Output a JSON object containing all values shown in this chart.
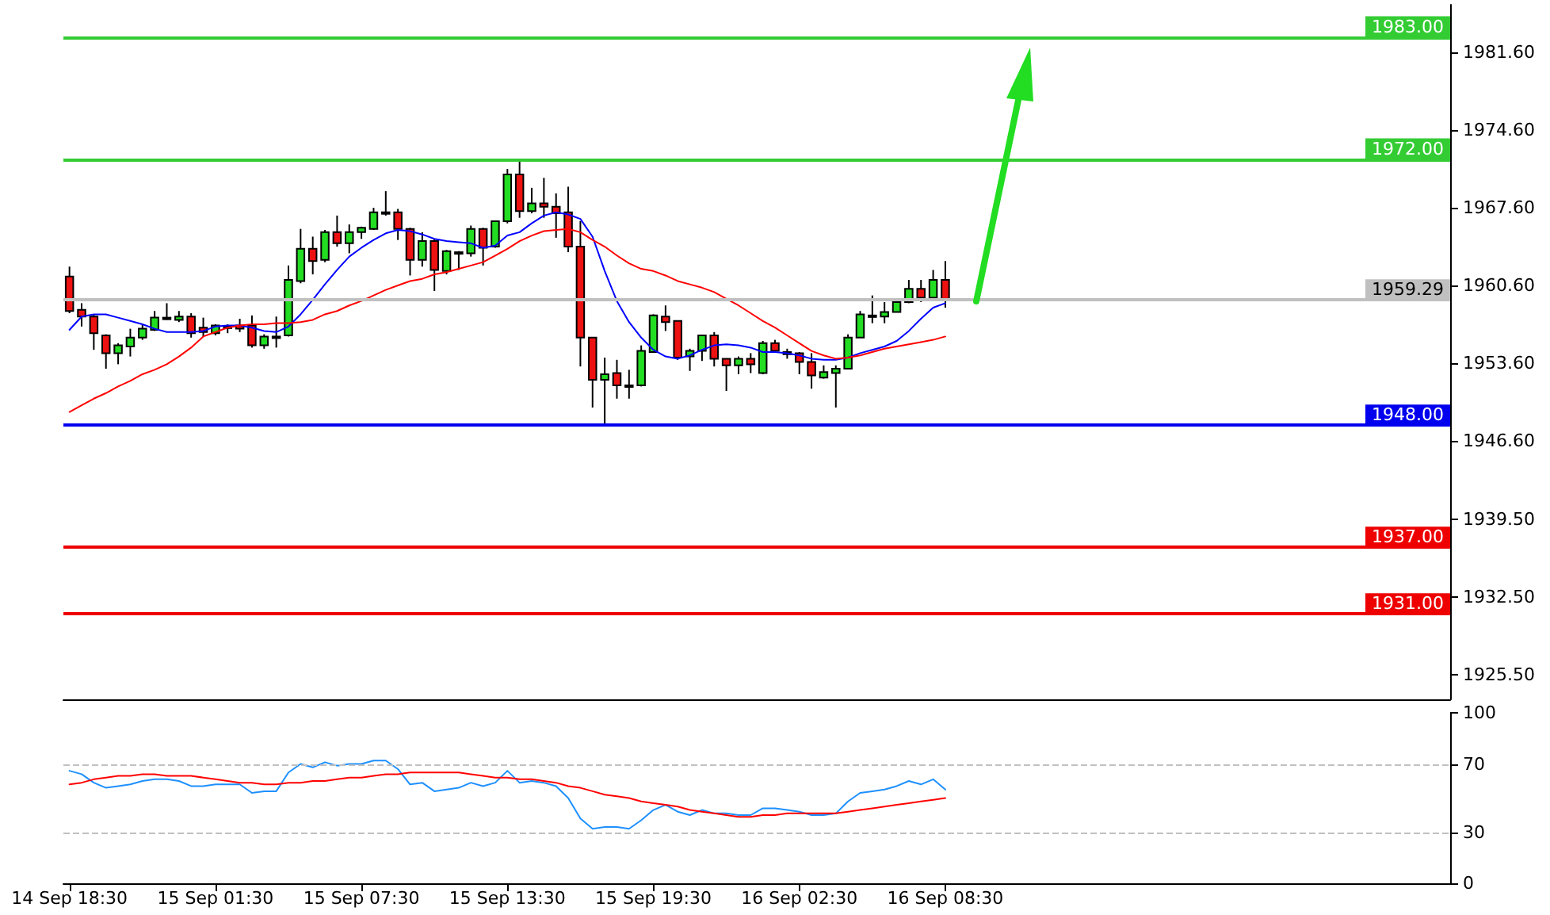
{
  "chart_data": [
    {
      "type": "candlestick",
      "categories": [
        null,
        null,
        null,
        null,
        null,
        null,
        null,
        null,
        null,
        null,
        null,
        null,
        null,
        null,
        null,
        null,
        null,
        null,
        null,
        null,
        null,
        null,
        null,
        null,
        null,
        null,
        null,
        null,
        null,
        null,
        null,
        null,
        null,
        null,
        null,
        null,
        null,
        null,
        null,
        null,
        null,
        null,
        null,
        null,
        null,
        null,
        null,
        null,
        null,
        null,
        null,
        null,
        null,
        null,
        null,
        null,
        null,
        null,
        null,
        null,
        null,
        null,
        null,
        null,
        null,
        null,
        null,
        null,
        null,
        null,
        null,
        null,
        null
      ],
      "ohlc": [
        [
          1961.4,
          1962.3,
          1958.1,
          1958.3
        ],
        [
          1958.4,
          1959.0,
          1956.9,
          1957.8
        ],
        [
          1957.8,
          1958.0,
          1954.8,
          1956.3
        ],
        [
          1956.1,
          1956.2,
          1953.1,
          1954.5
        ],
        [
          1954.5,
          1955.4,
          1953.5,
          1955.2
        ],
        [
          1955.1,
          1956.7,
          1954.2,
          1955.9
        ],
        [
          1955.9,
          1957.1,
          1955.7,
          1956.7
        ],
        [
          1956.6,
          1958.3,
          1956.5,
          1957.7
        ],
        [
          1957.7,
          1959.0,
          1957.5,
          1957.7
        ],
        [
          1957.5,
          1958.3,
          1957.3,
          1957.8
        ],
        [
          1957.8,
          1958.1,
          1955.9,
          1956.3
        ],
        [
          1956.8,
          1957.7,
          1956.0,
          1956.4
        ],
        [
          1956.3,
          1957.1,
          1956.1,
          1957.0
        ],
        [
          1956.9,
          1957.1,
          1956.3,
          1956.9
        ],
        [
          1957.0,
          1957.6,
          1956.4,
          1956.7
        ],
        [
          1957.0,
          1957.9,
          1955.0,
          1955.2
        ],
        [
          1955.2,
          1956.2,
          1954.9,
          1956.0
        ],
        [
          1956.0,
          1957.8,
          1955.0,
          1956.0
        ],
        [
          1956.1,
          1962.4,
          1956.0,
          1961.1
        ],
        [
          1961.0,
          1965.7,
          1960.8,
          1963.9
        ],
        [
          1963.9,
          1965.0,
          1961.6,
          1962.8
        ],
        [
          1962.9,
          1965.6,
          1962.7,
          1965.4
        ],
        [
          1965.4,
          1966.9,
          1964.1,
          1964.4
        ],
        [
          1964.4,
          1966.1,
          1963.5,
          1965.4
        ],
        [
          1965.4,
          1965.9,
          1964.8,
          1965.8
        ],
        [
          1965.7,
          1967.6,
          1965.6,
          1967.2
        ],
        [
          1967.2,
          1969.1,
          1966.9,
          1967.2
        ],
        [
          1967.2,
          1967.5,
          1964.7,
          1965.7
        ],
        [
          1965.7,
          1965.8,
          1961.5,
          1962.9
        ],
        [
          1962.9,
          1965.4,
          1962.3,
          1964.6
        ],
        [
          1964.6,
          1964.8,
          1960.1,
          1962.0
        ],
        [
          1961.9,
          1963.8,
          1961.6,
          1963.7
        ],
        [
          1963.6,
          1963.7,
          1962.0,
          1963.6
        ],
        [
          1963.5,
          1966.0,
          1963.2,
          1965.7
        ],
        [
          1965.7,
          1965.8,
          1962.4,
          1964.0
        ],
        [
          1964.1,
          1966.4,
          1964.0,
          1966.4
        ],
        [
          1966.4,
          1971.1,
          1966.2,
          1970.6
        ],
        [
          1970.6,
          1971.8,
          1966.7,
          1967.3
        ],
        [
          1967.3,
          1969.4,
          1967.1,
          1968.0
        ],
        [
          1968.0,
          1970.3,
          1966.7,
          1967.7
        ],
        [
          1967.7,
          1968.9,
          1964.9,
          1967.1
        ],
        [
          1967.2,
          1969.5,
          1963.6,
          1964.1
        ],
        [
          1964.1,
          1966.4,
          1953.3,
          1955.9
        ],
        [
          1955.9,
          1955.9,
          1949.6,
          1952.1
        ],
        [
          1952.1,
          1954.1,
          1948.0,
          1952.6
        ],
        [
          1952.7,
          1953.9,
          1950.4,
          1951.6
        ],
        [
          1951.6,
          1953.0,
          1950.4,
          1951.6
        ],
        [
          1951.6,
          1955.2,
          1951.5,
          1954.7
        ],
        [
          1954.6,
          1958.0,
          1954.6,
          1957.9
        ],
        [
          1957.8,
          1958.8,
          1956.5,
          1957.3
        ],
        [
          1957.4,
          1957.4,
          1953.9,
          1954.1
        ],
        [
          1954.2,
          1954.9,
          1952.9,
          1954.7
        ],
        [
          1954.7,
          1956.1,
          1953.8,
          1956.1
        ],
        [
          1956.1,
          1956.4,
          1953.3,
          1954.0
        ],
        [
          1954.0,
          1954.0,
          1951.1,
          1953.4
        ],
        [
          1953.4,
          1954.2,
          1952.6,
          1954.0
        ],
        [
          1954.0,
          1954.5,
          1952.7,
          1953.5
        ],
        [
          1952.7,
          1955.6,
          1952.6,
          1955.4
        ],
        [
          1955.4,
          1955.7,
          1954.6,
          1954.7
        ],
        [
          1954.6,
          1954.9,
          1954.0,
          1954.4
        ],
        [
          1954.5,
          1954.6,
          1952.6,
          1953.7
        ],
        [
          1953.7,
          1954.5,
          1951.3,
          1952.5
        ],
        [
          1952.3,
          1953.4,
          1952.2,
          1952.8
        ],
        [
          1952.7,
          1953.4,
          1949.6,
          1953.1
        ],
        [
          1953.1,
          1956.2,
          1953.1,
          1955.9
        ],
        [
          1955.9,
          1958.3,
          1955.9,
          1958.0
        ],
        [
          1957.9,
          1959.7,
          1957.2,
          1957.9
        ],
        [
          1957.8,
          1959.1,
          1957.2,
          1958.2
        ],
        [
          1958.2,
          1959.3,
          1958.2,
          1959.1
        ],
        [
          1959.1,
          1961.1,
          1959.0,
          1960.3
        ],
        [
          1960.3,
          1961.1,
          1959.1,
          1959.5
        ],
        [
          1959.5,
          1962.0,
          1959.4,
          1961.1
        ],
        [
          1961.1,
          1962.8,
          1958.6,
          1959.29
        ]
      ],
      "colors": [
        "#ee1111",
        "#ee1111",
        "#ee1111",
        "#ee1111",
        "#22dd22",
        "#22dd22",
        "#22dd22",
        "#22dd22",
        "#22dd22",
        "#22dd22",
        "#ee1111",
        "#ee1111",
        "#22dd22",
        "#22dd22",
        "#ee1111",
        "#ee1111",
        "#22dd22",
        "#22dd22",
        "#22dd22",
        "#22dd22",
        "#ee1111",
        "#22dd22",
        "#ee1111",
        "#22dd22",
        "#22dd22",
        "#22dd22",
        "#22dd22",
        "#ee1111",
        "#ee1111",
        "#22dd22",
        "#ee1111",
        "#22dd22",
        "#22dd22",
        "#22dd22",
        "#ee1111",
        "#22dd22",
        "#22dd22",
        "#ee1111",
        "#22dd22",
        "#ee1111",
        "#ee1111",
        "#ee1111",
        "#ee1111",
        "#ee1111",
        "#22dd22",
        "#ee1111",
        "#22dd22",
        "#22dd22",
        "#22dd22",
        "#ee1111",
        "#ee1111",
        "#22dd22",
        "#22dd22",
        "#ee1111",
        "#ee1111",
        "#22dd22",
        "#ee1111",
        "#22dd22",
        "#ee1111",
        "#ee1111",
        "#ee1111",
        "#ee1111",
        "#22dd22",
        "#22dd22",
        "#22dd22",
        "#22dd22",
        "#22dd22",
        "#22dd22",
        "#22dd22",
        "#22dd22",
        "#ee1111",
        "#22dd22",
        "#ee1111"
      ],
      "series": [
        {
          "type": "line",
          "color": "#0000ff",
          "values": [
            1956.6,
            1957.8,
            1958.0,
            1958.0,
            1957.7,
            1957.4,
            1957.1,
            1956.7,
            1956.4,
            1956.4,
            1956.4,
            1956.5,
            1956.9,
            1957.0,
            1957.0,
            1956.8,
            1956.5,
            1956.4,
            1956.9,
            1958.0,
            1959.3,
            1960.7,
            1962.0,
            1963.2,
            1964.0,
            1964.7,
            1965.3,
            1965.6,
            1965.5,
            1965.2,
            1964.8,
            1964.6,
            1964.5,
            1964.4,
            1964.0,
            1964.2,
            1965.1,
            1965.4,
            1966.2,
            1966.9,
            1967.2,
            1967.0,
            1966.6,
            1965.0,
            1961.9,
            1959.2,
            1957.3,
            1955.9,
            1954.8,
            1954.2,
            1954.0,
            1954.3,
            1954.8,
            1955.2,
            1955.3,
            1955.2,
            1955.0,
            1954.6,
            1954.6,
            1954.5,
            1954.3,
            1954.0,
            1953.9,
            1953.9,
            1954.1,
            1954.5,
            1954.8,
            1955.1,
            1955.6,
            1956.5,
            1957.6,
            1958.6,
            1959.0
          ]
        },
        {
          "type": "line",
          "color": "#ff0000",
          "values": [
            1949.2,
            1949.8,
            1950.4,
            1950.9,
            1951.5,
            1952.0,
            1952.6,
            1953.0,
            1953.5,
            1954.2,
            1955.0,
            1956.0,
            1956.4,
            1956.8,
            1957.0,
            1957.1,
            1957.1,
            1957.2,
            1957.2,
            1957.3,
            1957.5,
            1958.0,
            1958.3,
            1958.8,
            1959.2,
            1959.7,
            1960.2,
            1960.6,
            1961.0,
            1961.2,
            1961.6,
            1961.8,
            1962.1,
            1962.4,
            1962.7,
            1963.3,
            1963.9,
            1964.6,
            1965.1,
            1965.5,
            1965.6,
            1965.7,
            1965.4,
            1964.7,
            1964.1,
            1963.3,
            1962.6,
            1962.1,
            1961.9,
            1961.5,
            1961.0,
            1960.7,
            1960.4,
            1960.0,
            1959.4,
            1958.8,
            1958.1,
            1957.4,
            1956.8,
            1956.1,
            1955.4,
            1954.7,
            1954.3,
            1954.0,
            1954.1,
            1954.3,
            1954.6,
            1954.9,
            1955.1,
            1955.3,
            1955.5,
            1955.7,
            1956.0
          ]
        }
      ],
      "ylim": [
        1923.3,
        1985.9
      ],
      "yticks": [
        {
          "value": 1925.5,
          "label": "1925.50"
        },
        {
          "value": 1932.5,
          "label": "1932.50"
        },
        {
          "value": 1939.5,
          "label": "1939.50"
        },
        {
          "value": 1946.6,
          "label": "1946.60"
        },
        {
          "value": 1953.6,
          "label": "1953.60"
        },
        {
          "value": 1960.6,
          "label": "1960.60"
        },
        {
          "value": 1967.6,
          "label": "1967.60"
        },
        {
          "value": 1974.6,
          "label": "1974.60"
        },
        {
          "value": 1981.6,
          "label": "1981.60"
        }
      ],
      "tick_labels": "y",
      "grid": false,
      "ref_lines": [
        {
          "axis": "y",
          "value": 1983,
          "label": "1983.00",
          "color": "#33cc33"
        },
        {
          "axis": "y",
          "value": 1972,
          "label": "1972.00",
          "color": "#33cc33"
        },
        {
          "axis": "y",
          "value": 1959.29,
          "label": "1959.29",
          "color": "#c0c0c0"
        },
        {
          "axis": "y",
          "value": 1948,
          "label": "1948.00",
          "color": "#0000ee"
        },
        {
          "axis": "y",
          "value": 1937,
          "label": "1937.00",
          "color": "#ee0000"
        },
        {
          "axis": "y",
          "value": 1931,
          "label": "1931.00",
          "color": "#ee0000"
        }
      ]
    },
    {
      "type": "line",
      "categories": [
        "14 Sep 18:30",
        null,
        null,
        null,
        null,
        null,
        null,
        null,
        null,
        null,
        null,
        null,
        "15 Sep 01:30",
        null,
        null,
        null,
        null,
        null,
        null,
        null,
        null,
        null,
        null,
        null,
        "15 Sep 07:30",
        null,
        null,
        null,
        null,
        null,
        null,
        null,
        null,
        null,
        null,
        null,
        "15 Sep 13:30",
        null,
        null,
        null,
        null,
        null,
        null,
        null,
        null,
        null,
        null,
        null,
        "15 Sep 19:30",
        null,
        null,
        null,
        null,
        null,
        null,
        null,
        null,
        null,
        null,
        null,
        "16 Sep 02:30",
        null,
        null,
        null,
        null,
        null,
        null,
        null,
        null,
        null,
        null,
        null,
        "16 Sep 08:30"
      ],
      "series": [
        {
          "color": "#1e90ff",
          "values": [
            66,
            64,
            59,
            56,
            57,
            58,
            60,
            61,
            61,
            60,
            57,
            57,
            58,
            58,
            58,
            53,
            54,
            54,
            65,
            70,
            68,
            71,
            69,
            70,
            70,
            72,
            72,
            67,
            58,
            59,
            54,
            55,
            56,
            59,
            57,
            59,
            66,
            59,
            60,
            59,
            57,
            50,
            38,
            32,
            33,
            33,
            32,
            37,
            43,
            46,
            42,
            40,
            43,
            41,
            41,
            40,
            40,
            44,
            44,
            43,
            42,
            40,
            40,
            41,
            48,
            53,
            54,
            55,
            57,
            60,
            58,
            61,
            55
          ]
        },
        {
          "color": "#ff0000",
          "values": [
            58,
            59,
            61,
            62,
            63,
            63,
            64,
            64,
            63,
            63,
            63,
            62,
            61,
            60,
            59,
            59,
            58,
            58,
            59,
            59,
            60,
            60,
            61,
            62,
            62,
            63,
            64,
            64,
            65,
            65,
            65,
            65,
            65,
            64,
            63,
            62,
            62,
            61,
            61,
            60,
            59,
            57,
            56,
            54,
            52,
            51,
            50,
            48,
            47,
            46,
            45,
            43,
            42,
            41,
            40,
            39,
            39,
            40,
            40,
            41,
            41,
            41,
            41,
            41,
            42,
            43,
            44,
            45,
            46,
            47,
            48,
            49,
            50
          ]
        }
      ],
      "ylim": [
        0,
        100
      ],
      "yticks": [
        0,
        30,
        70,
        100
      ],
      "grid": false,
      "ref_lines": [
        {
          "axis": "y",
          "value": 70,
          "color": "#c0c0c0",
          "line_style": "dashed"
        },
        {
          "axis": "y",
          "value": 30,
          "color": "#c0c0c0",
          "line_style": "dashed"
        }
      ]
    }
  ]
}
